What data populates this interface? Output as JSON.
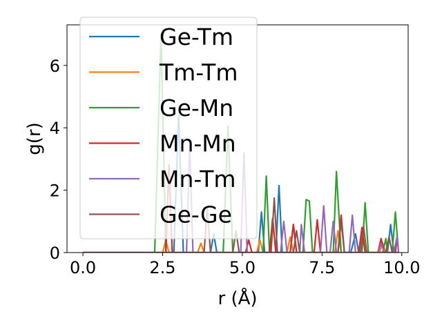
{
  "chart_data": {
    "type": "line",
    "title": "",
    "xlabel": "r (Å)",
    "ylabel": "g(r)",
    "xlim": [
      -0.5,
      10.2
    ],
    "ylim": [
      0,
      7.3
    ],
    "xticks": [
      0.0,
      2.5,
      5.0,
      7.5,
      10.0
    ],
    "xtick_labels": [
      "0.0",
      "2.5",
      "5.0",
      "7.5",
      "10.0"
    ],
    "yticks": [
      0,
      2,
      4,
      6
    ],
    "ytick_labels": [
      "0",
      "2",
      "4",
      "6"
    ],
    "grid": false,
    "legend_position": "upper-left",
    "series": [
      {
        "name": "Ge-Tm",
        "color": "#1f77b4",
        "points": [
          [
            0,
            0
          ],
          [
            2.85,
            0
          ],
          [
            3.0,
            4.4
          ],
          [
            3.15,
            0
          ],
          [
            4.0,
            0
          ],
          [
            4.1,
            0.6
          ],
          [
            4.2,
            0
          ],
          [
            5.5,
            0
          ],
          [
            5.6,
            1.3
          ],
          [
            5.7,
            0
          ],
          [
            6.05,
            0
          ],
          [
            6.15,
            2.15
          ],
          [
            6.25,
            0
          ],
          [
            6.5,
            0
          ],
          [
            6.6,
            0.9
          ],
          [
            6.7,
            0
          ],
          [
            8.4,
            0
          ],
          [
            8.55,
            0.6
          ],
          [
            8.65,
            0
          ],
          [
            9.55,
            0
          ],
          [
            9.65,
            0.9
          ],
          [
            9.75,
            0
          ],
          [
            9.9,
            0
          ]
        ]
      },
      {
        "name": "Tm-Tm",
        "color": "#ff7f0e",
        "points": [
          [
            0,
            0
          ],
          [
            2.5,
            0
          ],
          [
            2.6,
            0.4
          ],
          [
            2.7,
            0
          ],
          [
            3.6,
            0
          ],
          [
            3.7,
            0.3
          ],
          [
            3.8,
            0
          ],
          [
            5.45,
            0
          ],
          [
            5.55,
            0.4
          ],
          [
            5.65,
            0
          ],
          [
            6.4,
            0
          ],
          [
            6.5,
            0.5
          ],
          [
            6.6,
            0
          ],
          [
            7.9,
            0
          ],
          [
            8.0,
            0.7
          ],
          [
            8.1,
            0
          ],
          [
            9.3,
            0
          ],
          [
            9.4,
            0.3
          ],
          [
            9.5,
            0
          ],
          [
            9.9,
            0
          ]
        ]
      },
      {
        "name": "Ge-Mn",
        "color": "#2ca02c",
        "points": [
          [
            0,
            0
          ],
          [
            2.25,
            0
          ],
          [
            2.45,
            7.0
          ],
          [
            2.6,
            0
          ],
          [
            4.4,
            0
          ],
          [
            4.55,
            4.05
          ],
          [
            4.7,
            0
          ],
          [
            5.65,
            0
          ],
          [
            5.75,
            2.45
          ],
          [
            5.85,
            0
          ],
          [
            6.9,
            0
          ],
          [
            7.0,
            1.7
          ],
          [
            7.1,
            1.65
          ],
          [
            7.2,
            0
          ],
          [
            7.85,
            0
          ],
          [
            7.95,
            2.6
          ],
          [
            8.1,
            0
          ],
          [
            8.75,
            0
          ],
          [
            8.85,
            1.6
          ],
          [
            8.95,
            0
          ],
          [
            9.4,
            0
          ],
          [
            9.5,
            0.45
          ],
          [
            9.55,
            0
          ],
          [
            9.7,
            0
          ],
          [
            9.8,
            1.3
          ],
          [
            9.9,
            0
          ]
        ]
      },
      {
        "name": "Mn-Mn",
        "color": "#d62728",
        "points": [
          [
            0,
            0
          ],
          [
            2.6,
            0
          ],
          [
            2.7,
            2.8
          ],
          [
            2.8,
            0
          ],
          [
            5.1,
            0
          ],
          [
            5.2,
            0.4
          ],
          [
            5.3,
            0
          ],
          [
            5.85,
            0
          ],
          [
            5.95,
            1.1
          ],
          [
            6.05,
            0
          ],
          [
            6.5,
            0
          ],
          [
            6.6,
            0.9
          ],
          [
            6.7,
            0
          ],
          [
            7.25,
            0
          ],
          [
            7.35,
            1.05
          ],
          [
            7.45,
            0
          ],
          [
            8.0,
            0
          ],
          [
            8.1,
            1.2
          ],
          [
            8.2,
            0
          ],
          [
            8.65,
            0
          ],
          [
            8.75,
            0.8
          ],
          [
            8.85,
            0
          ],
          [
            9.25,
            0
          ],
          [
            9.35,
            0.45
          ],
          [
            9.45,
            0
          ],
          [
            9.8,
            0
          ],
          [
            9.85,
            0.45
          ]
        ]
      },
      {
        "name": "Mn-Tm",
        "color": "#9467bd",
        "points": [
          [
            0,
            0
          ],
          [
            3.25,
            0
          ],
          [
            3.35,
            3.4
          ],
          [
            3.45,
            0
          ],
          [
            4.95,
            0
          ],
          [
            5.05,
            3.2
          ],
          [
            5.15,
            0
          ],
          [
            6.2,
            0
          ],
          [
            6.3,
            1.0
          ],
          [
            6.4,
            0
          ],
          [
            6.8,
            0
          ],
          [
            6.85,
            0.9
          ],
          [
            6.95,
            0
          ],
          [
            7.45,
            0
          ],
          [
            7.55,
            1.5
          ],
          [
            7.65,
            0
          ],
          [
            7.75,
            0
          ],
          [
            7.85,
            1.0
          ],
          [
            7.95,
            0
          ],
          [
            8.35,
            0
          ],
          [
            8.45,
            1.2
          ],
          [
            8.55,
            0
          ],
          [
            9.25,
            0
          ],
          [
            9.35,
            0.3
          ],
          [
            9.45,
            0
          ],
          [
            9.75,
            0
          ],
          [
            9.85,
            0.5
          ],
          [
            9.9,
            0
          ]
        ]
      },
      {
        "name": "Ge-Ge",
        "color": "#8c564b",
        "points": [
          [
            0,
            0
          ],
          [
            3.8,
            0
          ],
          [
            3.9,
            1.45
          ],
          [
            4.0,
            0
          ],
          [
            4.7,
            0
          ],
          [
            4.8,
            0.7
          ],
          [
            4.9,
            0
          ],
          [
            5.9,
            0
          ],
          [
            6.0,
            1.75
          ],
          [
            6.1,
            0
          ],
          [
            6.6,
            0
          ],
          [
            6.7,
            0.7
          ],
          [
            6.8,
            0
          ],
          [
            8.0,
            0
          ],
          [
            8.1,
            1.0
          ],
          [
            8.2,
            0
          ],
          [
            8.7,
            0
          ],
          [
            8.8,
            0.85
          ],
          [
            8.9,
            0
          ],
          [
            9.5,
            0
          ],
          [
            9.6,
            0.5
          ],
          [
            9.7,
            0
          ],
          [
            9.9,
            0
          ]
        ]
      }
    ]
  }
}
